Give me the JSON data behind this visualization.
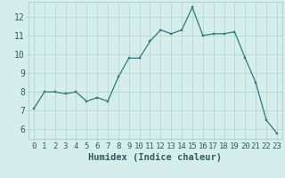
{
  "x": [
    0,
    1,
    2,
    3,
    4,
    5,
    6,
    7,
    8,
    9,
    10,
    11,
    12,
    13,
    14,
    15,
    16,
    17,
    18,
    19,
    20,
    21,
    22,
    23
  ],
  "y": [
    7.1,
    8.0,
    8.0,
    7.9,
    8.0,
    7.5,
    7.7,
    7.5,
    8.8,
    9.8,
    9.8,
    10.7,
    11.3,
    11.1,
    11.3,
    12.5,
    11.0,
    11.1,
    11.1,
    11.2,
    9.8,
    8.5,
    6.5,
    5.8
  ],
  "line_color": "#2e7d72",
  "marker_color": "#2e7d72",
  "bg_color": "#d6eeeb",
  "grid_color": "#b0d4cf",
  "xlabel": "Humidex (Indice chaleur)",
  "ylim": [
    5.5,
    12.8
  ],
  "xlim": [
    -0.5,
    23.5
  ],
  "yticks": [
    6,
    7,
    8,
    9,
    10,
    11,
    12
  ],
  "xticks": [
    0,
    1,
    2,
    3,
    4,
    5,
    6,
    7,
    8,
    9,
    10,
    11,
    12,
    13,
    14,
    15,
    16,
    17,
    18,
    19,
    20,
    21,
    22,
    23
  ],
  "tick_fontsize": 6.5,
  "xlabel_fontsize": 7.5
}
